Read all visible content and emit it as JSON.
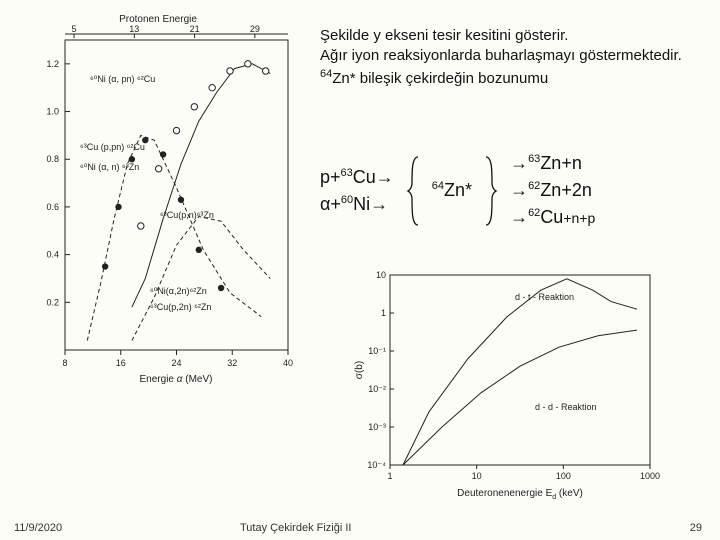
{
  "caption": {
    "line1": "Şekilde y ekseni tesir kesitini gösterir.",
    "line2": " Ağır iyon reaksiyonlarda buharlaşmayı göstermektedir.",
    "line3_prefix": "64",
    "line3_rest": "Zn* bileşik çekirdeğin bozunumu"
  },
  "reactions": {
    "l1_pre": "p+",
    "l1_sup": "63",
    "l1_post": "Cu",
    "l2_pre": "α+",
    "l2_sup": "60",
    "l2_post": "Ni",
    "mid_sup": "64",
    "mid": "Zn*",
    "r1_sup": "63",
    "r1": "Zn+n",
    "r2_sup": "62",
    "r2": "Zn+2n",
    "r3_sup": "62",
    "r3": "Cu",
    "r3_tail": "+n+p",
    "arrow": "→"
  },
  "left_graph": {
    "title": "Protonen Energie",
    "top_ticks": [
      "5",
      "13",
      "21",
      "29"
    ],
    "y_ticks": [
      "1.2",
      "1.0",
      "0.8",
      "0.6",
      "0.4",
      "0.2"
    ],
    "x_ticks": [
      "8",
      "16",
      "24",
      "32",
      "40"
    ],
    "xlabel_pre": "Energie ",
    "xlabel_sym": "α",
    "xlabel_post": "  (MeV)",
    "labels": {
      "a": "⁶⁰Ni (α, pn) ⁶²Cu",
      "b": "⁶³Cu (p,pn) ⁶²Cu",
      "c": "⁶⁰Ni (α, n) ⁶³Zn",
      "d": "⁶³Cu(p,n)⁶³Zn",
      "e": "⁶⁰Ni(α,2n)⁶²Zn",
      "f": "⁶³Cu(p,2n) ⁶²Zn"
    },
    "colors": {
      "line": "#222222",
      "marker_open": "#ffffff",
      "marker_fill": "#222222"
    },
    "curves": {
      "a": [
        [
          0.3,
          0.18
        ],
        [
          0.36,
          0.3
        ],
        [
          0.44,
          0.55
        ],
        [
          0.52,
          0.78
        ],
        [
          0.6,
          0.96
        ],
        [
          0.68,
          1.08
        ],
        [
          0.76,
          1.18
        ],
        [
          0.84,
          1.2
        ],
        [
          0.92,
          1.16
        ]
      ],
      "c": [
        [
          0.1,
          0.04
        ],
        [
          0.16,
          0.28
        ],
        [
          0.22,
          0.55
        ],
        [
          0.28,
          0.78
        ],
        [
          0.34,
          0.9
        ],
        [
          0.4,
          0.88
        ],
        [
          0.5,
          0.68
        ],
        [
          0.62,
          0.42
        ],
        [
          0.74,
          0.24
        ],
        [
          0.88,
          0.14
        ]
      ],
      "e": [
        [
          0.3,
          0.04
        ],
        [
          0.4,
          0.22
        ],
        [
          0.5,
          0.44
        ],
        [
          0.6,
          0.56
        ],
        [
          0.7,
          0.54
        ],
        [
          0.8,
          0.42
        ],
        [
          0.92,
          0.3
        ]
      ]
    },
    "markers_filled": [
      [
        0.18,
        0.35
      ],
      [
        0.24,
        0.6
      ],
      [
        0.3,
        0.8
      ],
      [
        0.36,
        0.88
      ],
      [
        0.44,
        0.82
      ],
      [
        0.52,
        0.63
      ],
      [
        0.6,
        0.42
      ],
      [
        0.7,
        0.26
      ]
    ],
    "markers_open": [
      [
        0.34,
        0.52
      ],
      [
        0.42,
        0.76
      ],
      [
        0.5,
        0.92
      ],
      [
        0.58,
        1.02
      ],
      [
        0.66,
        1.1
      ],
      [
        0.74,
        1.17
      ],
      [
        0.82,
        1.2
      ],
      [
        0.9,
        1.17
      ]
    ]
  },
  "bottom_graph": {
    "ylabel": "σ(b)",
    "xlabel": "Deuteronenenergie E",
    "xlabel_sub": "d",
    "xlabel_post": " (keV)",
    "y_ticks": [
      "10",
      "1",
      "10⁻¹",
      "10⁻²",
      "10⁻³",
      "10⁻⁴"
    ],
    "x_ticks": [
      "1",
      "10",
      "100",
      "1000"
    ],
    "label_top": "d - t - Reaktion",
    "label_bottom": "d - d - Reaktion",
    "curve1": [
      [
        0.05,
        -4.0
      ],
      [
        0.15,
        -2.6
      ],
      [
        0.3,
        -1.2
      ],
      [
        0.45,
        -0.1
      ],
      [
        0.58,
        0.6
      ],
      [
        0.68,
        0.9
      ],
      [
        0.78,
        0.6
      ],
      [
        0.85,
        0.3
      ],
      [
        0.95,
        0.1
      ]
    ],
    "curve2": [
      [
        0.05,
        -4.0
      ],
      [
        0.2,
        -3.0
      ],
      [
        0.35,
        -2.1
      ],
      [
        0.5,
        -1.4
      ],
      [
        0.65,
        -0.9
      ],
      [
        0.8,
        -0.6
      ],
      [
        0.95,
        -0.45
      ]
    ],
    "colors": {
      "line": "#222222"
    }
  },
  "footer": {
    "date": "11/9/2020",
    "title": "Tutay   Çekirdek Fiziği II",
    "page": "29"
  }
}
